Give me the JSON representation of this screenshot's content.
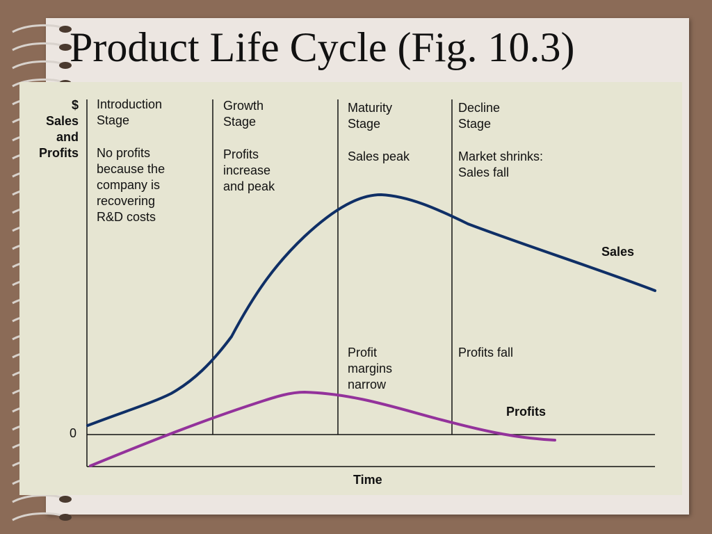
{
  "title": "Product Life Cycle (Fig. 10.3)",
  "y_axis_label": "$\nSales\nand\nProfits",
  "zero_label": "0",
  "x_axis_label": "Time",
  "stages": [
    {
      "name": "Introduction\nStage",
      "description": "No profits\nbecause the\ncompany is\nrecovering\nR&D costs"
    },
    {
      "name": "Growth\nStage",
      "description": "Profits\nincrease\nand peak"
    },
    {
      "name": "Maturity\nStage",
      "description": "Sales peak"
    },
    {
      "name": "Decline\nStage",
      "description": "Market shrinks:\nSales fall"
    }
  ],
  "annotations": {
    "maturity_profit": "Profit\nmargins\nnarrow",
    "decline_profit": "Profits fall"
  },
  "curves": {
    "sales": {
      "label": "Sales",
      "color": "#0f2f66"
    },
    "profits": {
      "label": "Profits",
      "color": "#93329b"
    }
  }
}
